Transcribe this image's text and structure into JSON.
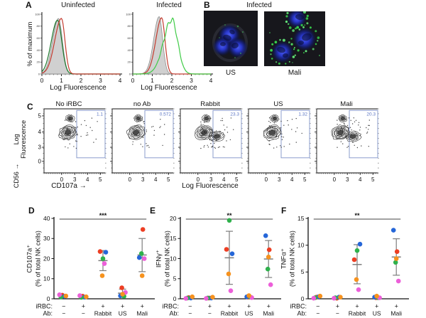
{
  "colors": {
    "gate": "#8b9ccd",
    "gate_text": "#5a74c4",
    "errorbar": "#7d7d7d",
    "donor_red": "#ed3e23",
    "donor_blue": "#2566d8",
    "donor_green": "#2fb14c",
    "donor_magenta": "#ec5fd9",
    "donor_orange": "#f6921e"
  },
  "panels": {
    "A": {
      "label": "A"
    },
    "B": {
      "label": "B",
      "title": "Infected",
      "captions": [
        "US",
        "Mali"
      ]
    },
    "C": {
      "label": "C"
    },
    "D": {
      "label": "D"
    },
    "E": {
      "label": "E"
    },
    "F": {
      "label": "F"
    }
  },
  "chart_data": [
    {
      "id": "A-uninfected",
      "type": "area",
      "title": "Uninfected",
      "xlabel": "Log Fluorescence",
      "ylabel": "% of maximum",
      "xlim": [
        0,
        4
      ],
      "ylim": [
        0,
        100
      ],
      "xticks": [
        0,
        1,
        2,
        3,
        4
      ],
      "yticks": [
        0,
        20,
        40,
        60,
        80,
        100
      ],
      "series": [
        {
          "name": "unstained-gray-fill",
          "filled": true,
          "color": "#cbcbcb",
          "edge": "#8f8f8f",
          "peak_x": 0.85,
          "peak_y": 93,
          "sigma_left": 0.3,
          "sigma_right": 0.2
        },
        {
          "name": "green-trace",
          "filled": false,
          "color": "#1e7a2e",
          "peak_x": 0.8,
          "peak_y": 90,
          "sigma_left": 0.32,
          "sigma_right": 0.22
        },
        {
          "name": "red-trace",
          "filled": false,
          "color": "#c43c30",
          "peak_x": 1.0,
          "peak_y": 93,
          "sigma_left": 0.34,
          "sigma_right": 0.18
        }
      ]
    },
    {
      "id": "A-infected",
      "type": "area",
      "title": "Infected",
      "xlabel": "Log Fluorescence",
      "ylabel": "% of maximum",
      "xlim": [
        0,
        4
      ],
      "ylim": [
        0,
        100
      ],
      "xticks": [
        0,
        1,
        2,
        3,
        4
      ],
      "yticks": [
        0,
        20,
        40,
        60,
        80,
        100
      ],
      "series": [
        {
          "name": "unstained-gray-fill",
          "filled": true,
          "color": "#cbcbcb",
          "edge": "#8f8f8f",
          "peak_x": 1.35,
          "peak_y": 96,
          "sigma_left": 0.28,
          "sigma_right": 0.18
        },
        {
          "name": "red-trace",
          "filled": false,
          "color": "#c43c30",
          "peak_x": 1.48,
          "peak_y": 94,
          "sigma_left": 0.3,
          "sigma_right": 0.17
        },
        {
          "name": "bright-green-trace",
          "filled": false,
          "color": "#3fcb46",
          "peak_x": 2.0,
          "peak_y": 91,
          "sigma_left": 0.42,
          "sigma_right": 0.3,
          "bumpy": true
        }
      ]
    },
    {
      "id": "C-flow",
      "type": "contour",
      "ylabel": "Log Fluorescence",
      "ylabel_marker": "CD56 →",
      "xlabel": "Log Fluorescence",
      "xlabel_marker": "CD107a →",
      "xticks": [
        0,
        3,
        4,
        5
      ],
      "yticks": [
        5,
        4,
        3,
        0
      ],
      "plots": [
        {
          "title": "No iRBC",
          "gate_label": "1.1",
          "gate_value": 1.1,
          "positive_population": false
        },
        {
          "title": "no Ab",
          "gate_label": "0.572",
          "gate_value": 0.572,
          "positive_population": false
        },
        {
          "title": "Rabbit",
          "gate_label": "23.3",
          "gate_value": 23.3,
          "positive_population": true
        },
        {
          "title": "US",
          "gate_label": "1.32",
          "gate_value": 1.32,
          "positive_population": false
        },
        {
          "title": "Mali",
          "gate_label": "20.3",
          "gate_value": 20.3,
          "positive_population": true
        }
      ]
    },
    {
      "id": "D",
      "type": "scatter",
      "ylabel_line1": "CD107a⁺",
      "ylabel_line2": "(% of total NK cells)",
      "ylim": [
        0,
        40
      ],
      "yticks": [
        0,
        10,
        20,
        30,
        40
      ],
      "significance": "***",
      "row_label_irbc": "iRBC:",
      "row_label_ab": "Ab:",
      "categories_irbc": [
        "−",
        "+",
        "+",
        "+",
        "+"
      ],
      "categories_ab": [
        "−",
        "−",
        "Rabbit",
        "US",
        "Mali"
      ],
      "series": [
        {
          "name": "donor-red",
          "color": "#ed3e23",
          "values": [
            1.8,
            1.3,
            23.5,
            5.5,
            34.5
          ]
        },
        {
          "name": "donor-blue",
          "color": "#2566d8",
          "values": [
            1.2,
            0.8,
            23.2,
            1.5,
            20.5
          ]
        },
        {
          "name": "donor-green",
          "color": "#2fb14c",
          "values": [
            0.9,
            0.7,
            20.0,
            1.2,
            22.5
          ]
        },
        {
          "name": "donor-magenta",
          "color": "#ec5fd9",
          "values": [
            2.0,
            1.6,
            17.5,
            3.2,
            20.0
          ]
        },
        {
          "name": "donor-orange",
          "color": "#f6921e",
          "values": [
            1.4,
            1.0,
            11.5,
            2.3,
            11.5
          ]
        }
      ],
      "errorbars": [
        null,
        null,
        {
          "mean": 19.0,
          "lo": 14.0,
          "hi": 24.0
        },
        {
          "mean": 2.8,
          "lo": 1.0,
          "hi": 4.8
        },
        {
          "mean": 21.8,
          "lo": 13.5,
          "hi": 30.0
        }
      ]
    },
    {
      "id": "E",
      "type": "scatter",
      "ylabel_line1": "IFNγ⁺",
      "ylabel_line2": "(% of total NK cells)",
      "ylim": [
        0,
        20
      ],
      "yticks": [
        0,
        5,
        10,
        15,
        20
      ],
      "significance": "**",
      "row_label_irbc": "iRBC:",
      "row_label_ab": "Ab:",
      "categories_irbc": [
        "−",
        "+",
        "+",
        "+",
        "+"
      ],
      "categories_ab": [
        "−",
        "−",
        "Rabbit",
        "US",
        "Mali"
      ],
      "series": [
        {
          "name": "donor-red",
          "color": "#ed3e23",
          "values": [
            0.3,
            0.2,
            12.3,
            0.4,
            12.2
          ]
        },
        {
          "name": "donor-blue",
          "color": "#2566d8",
          "values": [
            0.2,
            0.2,
            11.2,
            0.5,
            15.7
          ]
        },
        {
          "name": "donor-green",
          "color": "#2fb14c",
          "values": [
            0.2,
            0.2,
            19.5,
            0.4,
            7.4
          ]
        },
        {
          "name": "donor-magenta",
          "color": "#ec5fd9",
          "values": [
            0.1,
            0.1,
            2.0,
            0.3,
            3.5
          ]
        },
        {
          "name": "donor-orange",
          "color": "#f6921e",
          "values": [
            0.5,
            0.4,
            6.2,
            0.8,
            10.4
          ]
        }
      ],
      "errorbars": [
        null,
        null,
        {
          "mean": 10.2,
          "lo": 3.6,
          "hi": 16.8
        },
        null,
        {
          "mean": 9.9,
          "lo": 5.3,
          "hi": 14.5
        }
      ]
    },
    {
      "id": "F",
      "type": "scatter",
      "ylabel_line1": "TNFα⁺",
      "ylabel_line2": "(% of total NK cells)",
      "ylim": [
        0,
        15
      ],
      "yticks": [
        0,
        5,
        10,
        15
      ],
      "significance": "**",
      "row_label_irbc": "iRBC:",
      "row_label_ab": "Ab:",
      "categories_irbc": [
        "−",
        "+",
        "+",
        "+",
        "+"
      ],
      "categories_ab": [
        "−",
        "−",
        "Rabbit",
        "US",
        "Mali"
      ],
      "series": [
        {
          "name": "donor-red",
          "color": "#ed3e23",
          "values": [
            0.3,
            0.1,
            7.3,
            0.2,
            8.8
          ]
        },
        {
          "name": "donor-blue",
          "color": "#2566d8",
          "values": [
            0.4,
            0.3,
            10.2,
            0.3,
            12.8
          ]
        },
        {
          "name": "donor-green",
          "color": "#2fb14c",
          "values": [
            0.2,
            0.2,
            9.0,
            0.2,
            6.8
          ]
        },
        {
          "name": "donor-magenta",
          "color": "#ec5fd9",
          "values": [
            0.1,
            0.1,
            1.7,
            0.2,
            3.3
          ]
        },
        {
          "name": "donor-orange",
          "color": "#f6921e",
          "values": [
            0.5,
            0.3,
            3.6,
            0.5,
            7.5
          ]
        }
      ],
      "errorbars": [
        null,
        null,
        {
          "mean": 6.4,
          "lo": 2.8,
          "hi": 10.1
        },
        null,
        {
          "mean": 7.8,
          "lo": 4.4,
          "hi": 11.2
        }
      ]
    }
  ]
}
